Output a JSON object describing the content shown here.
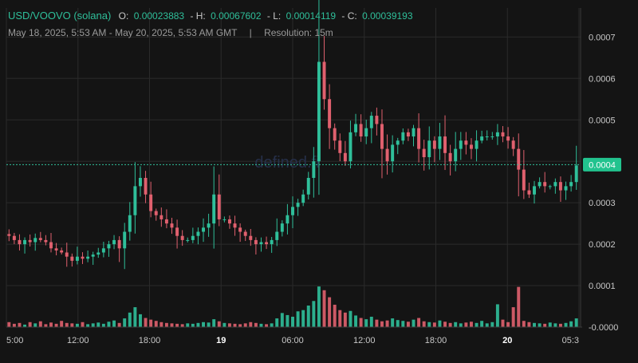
{
  "header": {
    "pair": "USD/VOOVO (solana)",
    "ohlc": {
      "open_label": "O:",
      "open": "0.00023883",
      "high_label": "- H:",
      "high": "0.00067602",
      "low_label": "- L:",
      "low": "0.00014119",
      "close_label": "- C:",
      "close": "0.00039193"
    },
    "range": "May 18, 2025, 5:53 AM - May 20, 2025, 5:53 AM GMT",
    "separator": "|",
    "resolution": "Resolution: 15m"
  },
  "watermark": "defined.fi",
  "price_badge": "0.0004",
  "colors": {
    "background": "#141414",
    "up": "#2fbf9a",
    "down": "#e0606e",
    "grid": "#2a2a2a",
    "text": "#c8c8c8",
    "badge": "#22c38e"
  },
  "chart_data": {
    "type": "candlestick",
    "price_axis_ticks": [
      "0.0007",
      "0.0006",
      "0.0005",
      "0.0004",
      "0.0003",
      "0.0002",
      "0.0001",
      "-0.0000"
    ],
    "time_axis_ticks": [
      {
        "label": "5:00",
        "bold": false
      },
      {
        "label": "12:00",
        "bold": false
      },
      {
        "label": "18:00",
        "bold": false
      },
      {
        "label": "19",
        "bold": true
      },
      {
        "label": "06:00",
        "bold": false
      },
      {
        "label": "12:00",
        "bold": false
      },
      {
        "label": "18:00",
        "bold": false
      },
      {
        "label": "20",
        "bold": true
      },
      {
        "label": "05:3",
        "bold": false
      }
    ],
    "ylim": [
      0.0,
      0.00077
    ],
    "current_price": 0.00039193,
    "price_path": [
      0.00022,
      0.00021,
      0.0002,
      0.00021,
      0.000205,
      0.000215,
      0.00021,
      0.000205,
      0.00019,
      0.000185,
      0.00018,
      0.00017,
      0.00016,
      0.00017,
      0.000165,
      0.00017,
      0.000175,
      0.00018,
      0.00019,
      0.0002,
      0.00021,
      0.00019,
      0.00023,
      0.00027,
      0.00034,
      0.00036,
      0.00032,
      0.00028,
      0.00027,
      0.00026,
      0.00025,
      0.00024,
      0.00022,
      0.00021,
      0.00021,
      0.00022,
      0.00023,
      0.00024,
      0.00025,
      0.00032,
      0.00026,
      0.00026,
      0.00025,
      0.00024,
      0.00023,
      0.00022,
      0.00021,
      0.0002,
      0.000205,
      0.0002,
      0.00021,
      0.00023,
      0.00025,
      0.00027,
      0.00029,
      0.0003,
      0.00032,
      0.00036,
      0.0004,
      0.00064,
      0.00055,
      0.00048,
      0.00045,
      0.00042,
      0.0004,
      0.00047,
      0.00049,
      0.00046,
      0.00048,
      0.00051,
      0.00049,
      0.00043,
      0.0004,
      0.00044,
      0.00045,
      0.00047,
      0.00046,
      0.00048,
      0.00043,
      0.00041,
      0.00045,
      0.00043,
      0.00046,
      0.00042,
      0.0004,
      0.00043,
      0.00045,
      0.00044,
      0.00043,
      0.00045,
      0.00046,
      0.00046,
      0.00046,
      0.00047,
      0.00046,
      0.00045,
      0.00043,
      0.00038,
      0.00033,
      0.00032,
      0.00034,
      0.00035,
      0.00034,
      0.00034,
      0.00035,
      0.00033,
      0.00034,
      0.00035,
      0.00039
    ],
    "volume": [
      1.2e-05,
      8e-06,
      1e-05,
      6e-06,
      1.2e-05,
      9e-06,
      1.4e-05,
      7e-06,
      1.1e-05,
      8e-06,
      1.5e-05,
      1e-05,
      9e-06,
      8e-06,
      1.2e-05,
      7e-06,
      9e-06,
      1.1e-05,
      8e-06,
      1.3e-05,
      1.6e-05,
      1e-05,
      2.1e-05,
      3.5e-05,
      4.8e-05,
      3.1e-05,
      2.2e-05,
      1.8e-05,
      1.5e-05,
      1.2e-05,
      1e-05,
      9e-06,
      8e-06,
      7e-06,
      9e-06,
      8e-06,
      1e-05,
      1.2e-05,
      1.1e-05,
      1.9e-05,
      1.4e-05,
      1e-05,
      9e-06,
      8e-06,
      7e-06,
      9e-06,
      1.2e-05,
      1e-05,
      8e-06,
      7e-06,
      9e-06,
      2.1e-05,
      3.4e-05,
      2.9e-05,
      2.5e-05,
      3.8e-05,
      4.1e-05,
      5.2e-05,
      6.3e-05,
      9.8e-05,
      8.9e-05,
      7.2e-05,
      5.4e-05,
      4.1e-05,
      3.5e-05,
      3.9e-05,
      2.8e-05,
      2.2e-05,
      1.9e-05,
      2.5e-05,
      1.8e-05,
      1.4e-05,
      1.6e-05,
      2.1e-05,
      1.7e-05,
      1.5e-05,
      1.3e-05,
      1.8e-05,
      2.2e-05,
      1.4e-05,
      1.2e-05,
      1.1e-05,
      1.6e-05,
      1.3e-05,
      1e-05,
      1.2e-05,
      9e-06,
      1.1e-05,
      1.3e-05,
      1e-05,
      1.5e-05,
      9e-06,
      1.2e-05,
      5.5e-05,
      1.8e-05,
      1.2e-05,
      4.8e-05,
      9.7e-05,
      1.5e-05,
      1.2e-05,
      1e-05,
      9e-06,
      8e-06,
      1.1e-05,
      9e-06,
      8e-06,
      1e-05,
      1.4e-05,
      2.1e-05
    ]
  }
}
